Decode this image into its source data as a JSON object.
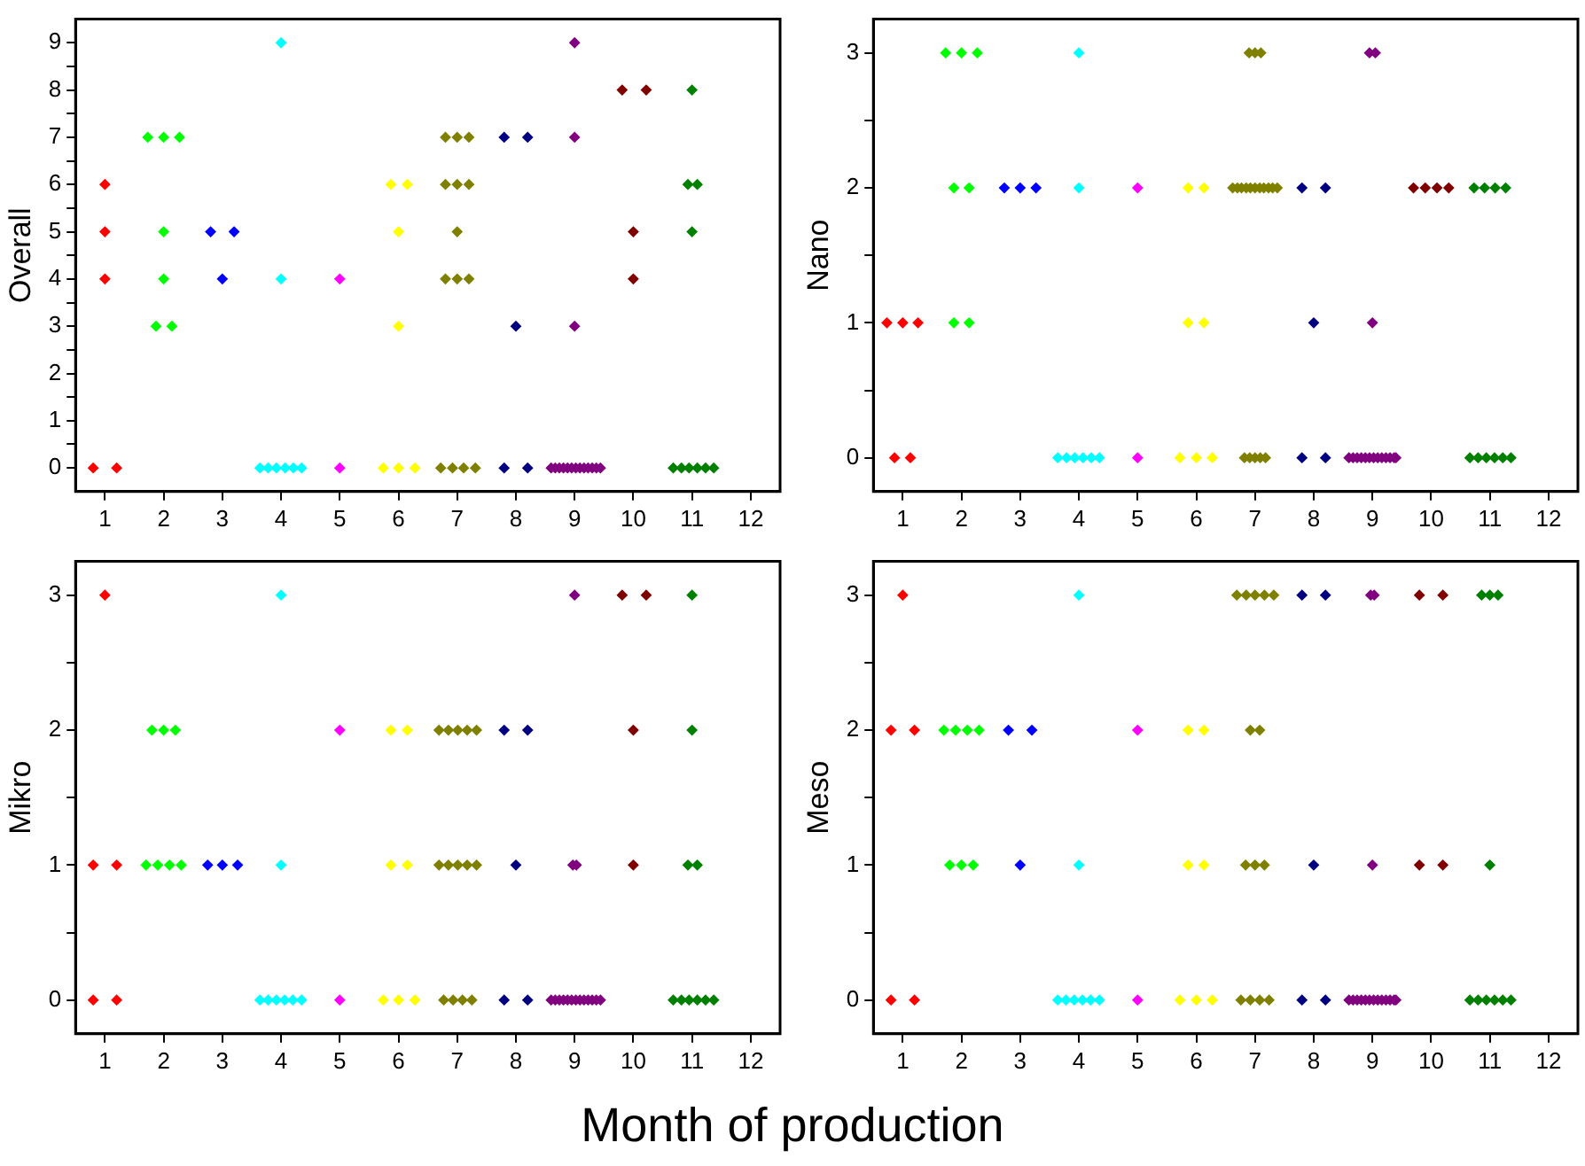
{
  "chart_data": [
    {
      "type": "scatter",
      "ylabel": "Overall",
      "marker": "diamond",
      "grid": false,
      "xlim": [
        0.5,
        12.5
      ],
      "xticks": [
        1,
        2,
        3,
        4,
        5,
        6,
        7,
        8,
        9,
        10,
        11,
        12
      ],
      "ylim": [
        -0.5,
        9.5
      ],
      "yticks": [
        0,
        {
          "value": 0.5,
          "label": null
        },
        1,
        {
          "value": 1.5,
          "label": null
        },
        2,
        {
          "value": 2.5,
          "label": null
        },
        3,
        {
          "value": 3.5,
          "label": null
        },
        4,
        {
          "value": 4.5,
          "label": null
        },
        5,
        {
          "value": 5.5,
          "label": null
        },
        6,
        {
          "value": 6.5,
          "label": null
        },
        7,
        {
          "value": 7.5,
          "label": null
        },
        8,
        {
          "value": 8.5,
          "label": null
        },
        9
      ],
      "series": [
        {
          "color": "#ff0000",
          "x": [
            0.8,
            1.2,
            1.0,
            1.0,
            1.0
          ],
          "values": [
            0,
            0,
            4,
            5,
            6
          ]
        },
        {
          "color": "#00ff00",
          "x": [
            1.73,
            2.0,
            2.27,
            2.0,
            2.0,
            1.87,
            2.14
          ],
          "values": [
            7,
            7,
            7,
            5,
            4,
            3,
            3
          ]
        },
        {
          "color": "#0000ff",
          "x": [
            2.8,
            3.2,
            3.0
          ],
          "values": [
            5,
            5,
            4
          ]
        },
        {
          "color": "#00ffff",
          "x": [
            4.0,
            4.0,
            3.64,
            3.78,
            3.92,
            4.07,
            4.21,
            4.35
          ],
          "values": [
            9,
            4,
            0,
            0,
            0,
            0,
            0,
            0
          ]
        },
        {
          "color": "#ff00ff",
          "x": [
            5.0,
            5.0
          ],
          "values": [
            4,
            0
          ]
        },
        {
          "color": "#ffff00",
          "x": [
            5.87,
            6.15,
            6.0,
            6.0,
            5.74,
            6.0,
            6.28
          ],
          "values": [
            6,
            6,
            5,
            3,
            0,
            0,
            0
          ]
        },
        {
          "color": "#808000",
          "x": [
            6.8,
            7.0,
            7.2,
            6.8,
            7.0,
            7.2,
            7.0,
            6.8,
            7.0,
            7.2,
            6.72,
            6.92,
            7.11,
            7.31
          ],
          "values": [
            7,
            7,
            7,
            6,
            6,
            6,
            5,
            4,
            4,
            4,
            0,
            0,
            0,
            0
          ]
        },
        {
          "color": "#000080",
          "x": [
            7.8,
            8.2,
            8.0,
            7.8,
            8.2
          ],
          "values": [
            7,
            7,
            3,
            0,
            0
          ]
        },
        {
          "color": "#800080",
          "x": [
            9.0,
            9.0,
            9.0,
            8.6,
            8.67,
            8.74,
            8.81,
            8.88,
            8.95,
            9.02,
            9.09,
            9.16,
            9.23,
            9.3,
            9.37,
            9.44
          ],
          "values": [
            9,
            7,
            3,
            0,
            0,
            0,
            0,
            0,
            0,
            0,
            0,
            0,
            0,
            0,
            0,
            0
          ]
        },
        {
          "color": "#800000",
          "x": [
            9.81,
            10.22,
            10.0,
            10.0
          ],
          "values": [
            8,
            8,
            5,
            4
          ]
        },
        {
          "color": "#008000",
          "x": [
            11.0,
            10.93,
            11.09,
            11.0,
            10.68,
            10.82,
            10.95,
            11.09,
            11.23,
            11.37
          ],
          "values": [
            8,
            6,
            6,
            5,
            0,
            0,
            0,
            0,
            0,
            0
          ]
        }
      ]
    },
    {
      "type": "scatter",
      "ylabel": "Nano",
      "marker": "diamond",
      "grid": false,
      "xlim": [
        0.5,
        12.5
      ],
      "xticks": [
        1,
        2,
        3,
        4,
        5,
        6,
        7,
        8,
        9,
        10,
        11,
        12
      ],
      "ylim": [
        -0.25,
        3.25
      ],
      "yticks": [
        0,
        {
          "value": 0.5,
          "label": null
        },
        1,
        {
          "value": 1.5,
          "label": null
        },
        2,
        {
          "value": 2.5,
          "label": null
        },
        3
      ],
      "series": [
        {
          "color": "#ff0000",
          "x": [
            0.73,
            1.0,
            1.26,
            0.86,
            1.13
          ],
          "values": [
            1,
            1,
            1,
            0,
            0
          ]
        },
        {
          "color": "#00ff00",
          "x": [
            1.73,
            2.0,
            2.27,
            1.87,
            2.13,
            1.87,
            2.13
          ],
          "values": [
            3,
            3,
            3,
            2,
            2,
            1,
            1
          ]
        },
        {
          "color": "#0000ff",
          "x": [
            2.73,
            3.0,
            3.27
          ],
          "values": [
            2,
            2,
            2
          ]
        },
        {
          "color": "#00ffff",
          "x": [
            4.0,
            4.0,
            3.64,
            3.79,
            3.93,
            4.07,
            4.21,
            4.35
          ],
          "values": [
            3,
            2,
            0,
            0,
            0,
            0,
            0,
            0
          ]
        },
        {
          "color": "#ff00ff",
          "x": [
            5.0,
            5.0
          ],
          "values": [
            2,
            0
          ]
        },
        {
          "color": "#ffff00",
          "x": [
            5.86,
            6.13,
            5.86,
            6.13,
            5.72,
            6.0,
            6.27
          ],
          "values": [
            2,
            2,
            1,
            1,
            0,
            0,
            0
          ]
        },
        {
          "color": "#808000",
          "x": [
            6.9,
            7.0,
            7.1,
            6.62,
            6.7,
            6.77,
            6.85,
            6.92,
            7.0,
            7.08,
            7.15,
            7.23,
            7.3,
            7.38,
            6.82,
            6.91,
            7.0,
            7.09,
            7.18
          ],
          "values": [
            3,
            3,
            3,
            2,
            2,
            2,
            2,
            2,
            2,
            2,
            2,
            2,
            2,
            2,
            0,
            0,
            0,
            0,
            0
          ]
        },
        {
          "color": "#000080",
          "x": [
            7.8,
            8.2,
            8.0,
            7.8,
            8.2
          ],
          "values": [
            2,
            2,
            1,
            0,
            0
          ]
        },
        {
          "color": "#800080",
          "x": [
            8.95,
            9.05,
            9.0,
            8.6,
            8.67,
            8.74,
            8.81,
            8.88,
            8.95,
            9.02,
            9.09,
            9.16,
            9.23,
            9.3,
            9.37,
            9.4
          ],
          "values": [
            3,
            3,
            1,
            0,
            0,
            0,
            0,
            0,
            0,
            0,
            0,
            0,
            0,
            0,
            0,
            0
          ]
        },
        {
          "color": "#800000",
          "x": [
            9.7,
            9.9,
            10.1,
            10.3
          ],
          "values": [
            2,
            2,
            2,
            2
          ]
        },
        {
          "color": "#008000",
          "x": [
            10.73,
            10.91,
            11.09,
            11.27,
            10.66,
            10.8,
            10.94,
            11.08,
            11.22,
            11.36
          ],
          "values": [
            2,
            2,
            2,
            2,
            0,
            0,
            0,
            0,
            0,
            0
          ]
        }
      ]
    },
    {
      "type": "scatter",
      "ylabel": "Mikro",
      "xlabel": "Month of production",
      "marker": "diamond",
      "grid": false,
      "xlim": [
        0.5,
        12.5
      ],
      "xticks": [
        1,
        2,
        3,
        4,
        5,
        6,
        7,
        8,
        9,
        10,
        11,
        12
      ],
      "ylim": [
        -0.25,
        3.25
      ],
      "yticks": [
        0,
        {
          "value": 0.5,
          "label": null
        },
        1,
        {
          "value": 1.5,
          "label": null
        },
        2,
        {
          "value": 2.5,
          "label": null
        },
        3
      ],
      "series": [
        {
          "color": "#ff0000",
          "x": [
            1.0,
            0.8,
            1.2,
            0.8,
            1.2
          ],
          "values": [
            3,
            1,
            1,
            0,
            0
          ]
        },
        {
          "color": "#00ff00",
          "x": [
            1.8,
            2.0,
            2.2,
            1.7,
            1.9,
            2.1,
            2.3
          ],
          "values": [
            2,
            2,
            2,
            1,
            1,
            1,
            1
          ]
        },
        {
          "color": "#0000ff",
          "x": [
            2.75,
            3.0,
            3.26
          ],
          "values": [
            1,
            1,
            1
          ]
        },
        {
          "color": "#00ffff",
          "x": [
            4.0,
            4.0,
            3.64,
            3.78,
            3.92,
            4.06,
            4.2,
            4.35
          ],
          "values": [
            3,
            1,
            0,
            0,
            0,
            0,
            0,
            0
          ]
        },
        {
          "color": "#ff00ff",
          "x": [
            5.0,
            5.0
          ],
          "values": [
            2,
            0
          ]
        },
        {
          "color": "#ffff00",
          "x": [
            5.87,
            6.15,
            5.87,
            6.15,
            5.74,
            6.0,
            6.28
          ],
          "values": [
            2,
            2,
            1,
            1,
            0,
            0,
            0
          ]
        },
        {
          "color": "#808000",
          "x": [
            6.69,
            6.85,
            7.01,
            7.17,
            7.33,
            6.69,
            6.85,
            7.01,
            7.17,
            7.33,
            6.77,
            6.93,
            7.09,
            7.25
          ],
          "values": [
            2,
            2,
            2,
            2,
            2,
            1,
            1,
            1,
            1,
            1,
            0,
            0,
            0,
            0
          ]
        },
        {
          "color": "#000080",
          "x": [
            7.8,
            8.2,
            8.0,
            7.8,
            8.2
          ],
          "values": [
            2,
            2,
            1,
            0,
            0
          ]
        },
        {
          "color": "#800080",
          "x": [
            9.0,
            8.97,
            9.03,
            8.6,
            8.67,
            8.74,
            8.81,
            8.88,
            8.95,
            9.02,
            9.09,
            9.16,
            9.23,
            9.3,
            9.37,
            9.44
          ],
          "values": [
            3,
            1,
            1,
            0,
            0,
            0,
            0,
            0,
            0,
            0,
            0,
            0,
            0,
            0,
            0,
            0
          ]
        },
        {
          "color": "#800000",
          "x": [
            9.81,
            10.22,
            10.0,
            10.0
          ],
          "values": [
            3,
            3,
            2,
            1
          ]
        },
        {
          "color": "#008000",
          "x": [
            11.0,
            11.0,
            10.93,
            11.09,
            10.68,
            10.82,
            10.95,
            11.09,
            11.23,
            11.37
          ],
          "values": [
            3,
            2,
            1,
            1,
            0,
            0,
            0,
            0,
            0,
            0
          ]
        }
      ]
    },
    {
      "type": "scatter",
      "ylabel": "Meso",
      "marker": "diamond",
      "grid": false,
      "xlim": [
        0.5,
        12.5
      ],
      "xticks": [
        1,
        2,
        3,
        4,
        5,
        6,
        7,
        8,
        9,
        10,
        11,
        12
      ],
      "ylim": [
        -0.25,
        3.25
      ],
      "yticks": [
        0,
        {
          "value": 0.5,
          "label": null
        },
        1,
        {
          "value": 1.5,
          "label": null
        },
        2,
        {
          "value": 2.5,
          "label": null
        },
        3
      ],
      "series": [
        {
          "color": "#ff0000",
          "x": [
            1.0,
            0.8,
            1.2,
            0.8,
            1.2
          ],
          "values": [
            3,
            2,
            2,
            0,
            0
          ]
        },
        {
          "color": "#00ff00",
          "x": [
            1.7,
            1.9,
            2.1,
            2.3,
            1.8,
            2.0,
            2.2
          ],
          "values": [
            2,
            2,
            2,
            2,
            1,
            1,
            1
          ]
        },
        {
          "color": "#0000ff",
          "x": [
            2.8,
            3.2,
            3.0
          ],
          "values": [
            2,
            2,
            1
          ]
        },
        {
          "color": "#00ffff",
          "x": [
            4.0,
            4.0,
            3.64,
            3.78,
            3.92,
            4.06,
            4.2,
            4.35
          ],
          "values": [
            3,
            1,
            0,
            0,
            0,
            0,
            0,
            0
          ]
        },
        {
          "color": "#ff00ff",
          "x": [
            5.0,
            5.0
          ],
          "values": [
            2,
            0
          ]
        },
        {
          "color": "#ffff00",
          "x": [
            5.86,
            6.13,
            5.86,
            6.13,
            5.72,
            6.0,
            6.27
          ],
          "values": [
            2,
            2,
            1,
            1,
            0,
            0,
            0
          ]
        },
        {
          "color": "#808000",
          "x": [
            6.69,
            6.85,
            7.0,
            7.16,
            7.32,
            6.92,
            7.08,
            6.84,
            7.0,
            7.16,
            6.76,
            6.92,
            7.08,
            7.24
          ],
          "values": [
            3,
            3,
            3,
            3,
            3,
            2,
            2,
            1,
            1,
            1,
            0,
            0,
            0,
            0
          ]
        },
        {
          "color": "#000080",
          "x": [
            7.8,
            8.2,
            8.0,
            7.8,
            8.2
          ],
          "values": [
            3,
            3,
            1,
            0,
            0
          ]
        },
        {
          "color": "#800080",
          "x": [
            8.97,
            9.03,
            9.0,
            8.6,
            8.67,
            8.74,
            8.81,
            8.88,
            8.95,
            9.02,
            9.09,
            9.16,
            9.23,
            9.3,
            9.37,
            9.4
          ],
          "values": [
            3,
            3,
            1,
            0,
            0,
            0,
            0,
            0,
            0,
            0,
            0,
            0,
            0,
            0,
            0,
            0
          ]
        },
        {
          "color": "#800000",
          "x": [
            9.8,
            10.2,
            9.8,
            10.2
          ],
          "values": [
            3,
            3,
            1,
            1
          ]
        },
        {
          "color": "#008000",
          "x": [
            10.86,
            11.0,
            11.14,
            11.0,
            10.66,
            10.8,
            10.94,
            11.08,
            11.22,
            11.36
          ],
          "values": [
            3,
            3,
            3,
            1,
            0,
            0,
            0,
            0,
            0,
            0
          ]
        }
      ]
    }
  ]
}
